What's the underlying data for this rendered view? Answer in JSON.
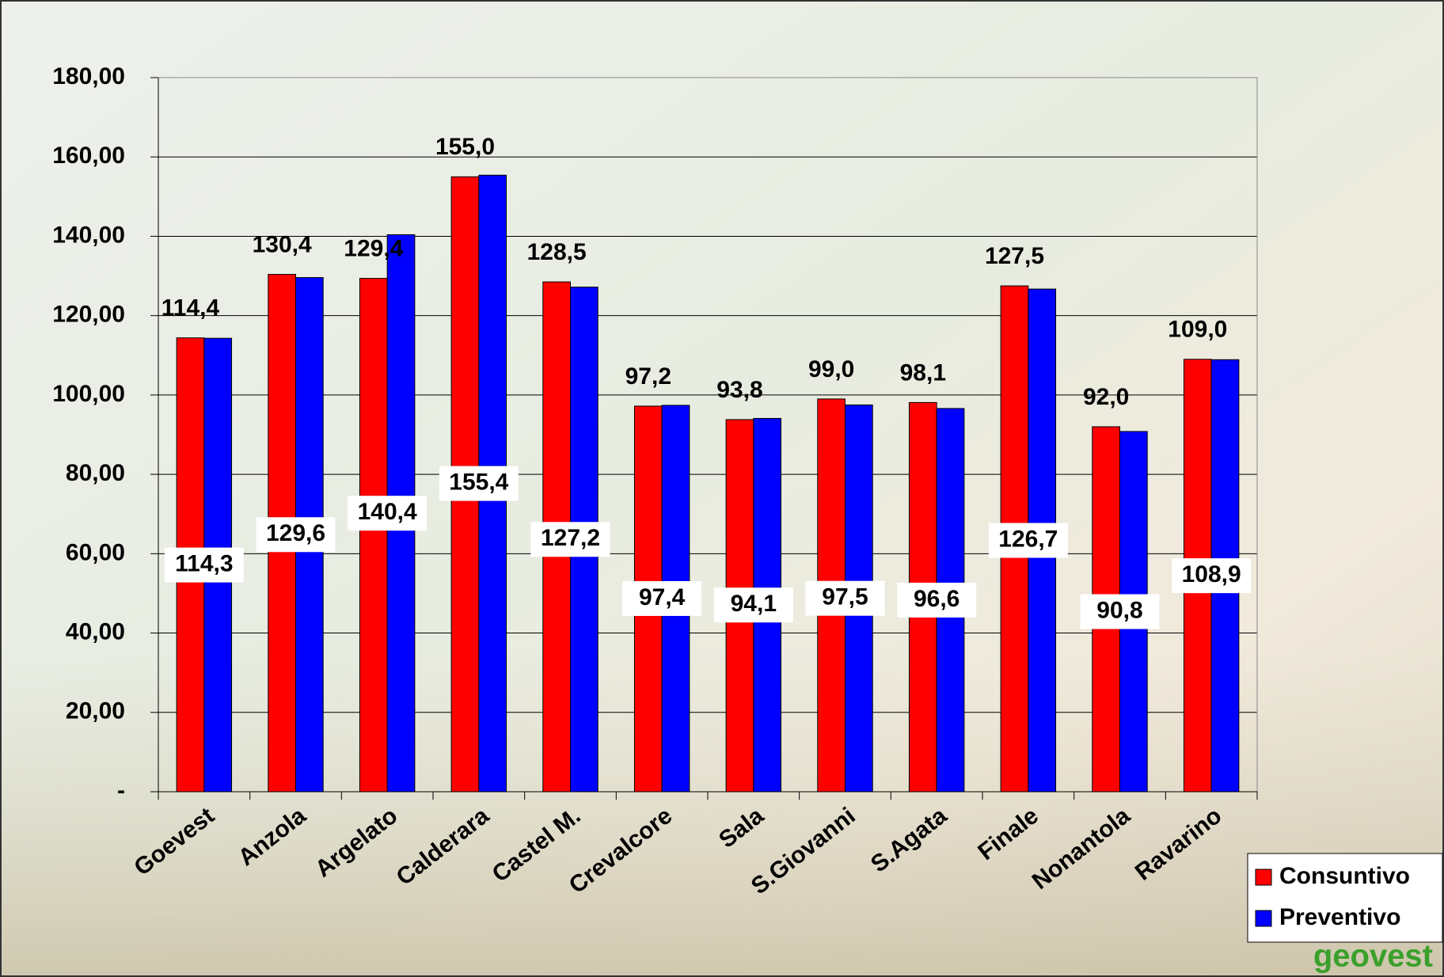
{
  "chart_data": {
    "type": "bar",
    "categories": [
      "Goevest",
      "Anzola",
      "Argelato",
      "Calderara",
      "Castel M.",
      "Crevalcore",
      "Sala",
      "S.Giovanni",
      "S.Agata",
      "Finale",
      "Nonantola",
      "Ravarino"
    ],
    "series": [
      {
        "name": "Consuntivo",
        "color": "#ff0000",
        "values": [
          114.4,
          130.4,
          129.4,
          155.0,
          128.5,
          97.2,
          93.8,
          99.0,
          98.1,
          127.5,
          92.0,
          109.0
        ],
        "value_labels": [
          "114,4",
          "130,4",
          "129,4",
          "155,0",
          "128,5",
          "97,2",
          "93,8",
          "99,0",
          "98,1",
          "127,5",
          "92,0",
          "109,0"
        ]
      },
      {
        "name": "Preventivo",
        "color": "#0000ff",
        "values": [
          114.3,
          129.6,
          140.4,
          155.4,
          127.2,
          97.4,
          94.1,
          97.5,
          96.6,
          126.7,
          90.8,
          108.9
        ],
        "value_labels": [
          "114,3",
          "129,6",
          "140,4",
          "155,4",
          "127,2",
          "97,4",
          "94,1",
          "97,5",
          "96,6",
          "126,7",
          "90,8",
          "108,9"
        ]
      }
    ],
    "ylim": [
      0,
      180
    ],
    "yticks": [
      {
        "value": 0,
        "label": "-"
      },
      {
        "value": 20,
        "label": "20,00"
      },
      {
        "value": 40,
        "label": "40,00"
      },
      {
        "value": 60,
        "label": "60,00"
      },
      {
        "value": 80,
        "label": "80,00"
      },
      {
        "value": 100,
        "label": "100,00"
      },
      {
        "value": 120,
        "label": "120,00"
      },
      {
        "value": 140,
        "label": "140,00"
      },
      {
        "value": 160,
        "label": "160,00"
      },
      {
        "value": 180,
        "label": "180,00"
      }
    ],
    "grid": true,
    "legend": "bottom-right"
  },
  "logo": "geovest"
}
